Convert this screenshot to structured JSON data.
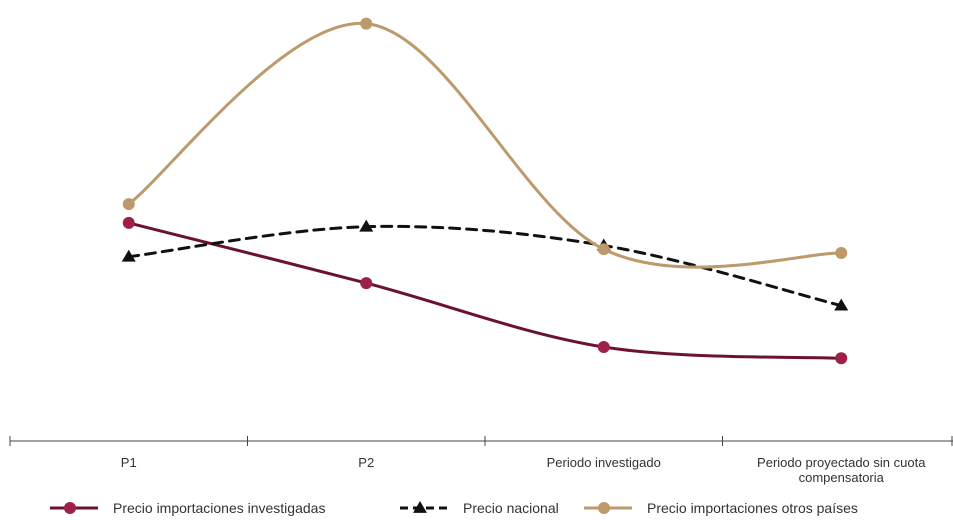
{
  "chart_data": {
    "type": "line",
    "categories": [
      "P1",
      "P2",
      "Periodo investigado",
      "Periodo proyectado sin cuota compensatoria"
    ],
    "series": [
      {
        "name": "Precio importaciones investigadas",
        "values": [
          58,
          42,
          25,
          22
        ],
        "color": "#6b1232",
        "marker_color": "#9e2046",
        "marker": "circle",
        "dash": false
      },
      {
        "name": "Precio nacional",
        "values": [
          49,
          57,
          52,
          36
        ],
        "color": "#111111",
        "marker_color": "#111111",
        "marker": "triangle",
        "dash": true
      },
      {
        "name": "Precio importaciones otros países",
        "values": [
          63,
          111,
          51,
          50
        ],
        "color": "#bc9a6b",
        "marker_color": "#bc9a6b",
        "marker": "circle",
        "dash": false
      }
    ],
    "ylim": [
      0,
      115
    ],
    "grid": false,
    "legend_position": "bottom",
    "title": "",
    "xlabel": "",
    "ylabel": ""
  }
}
